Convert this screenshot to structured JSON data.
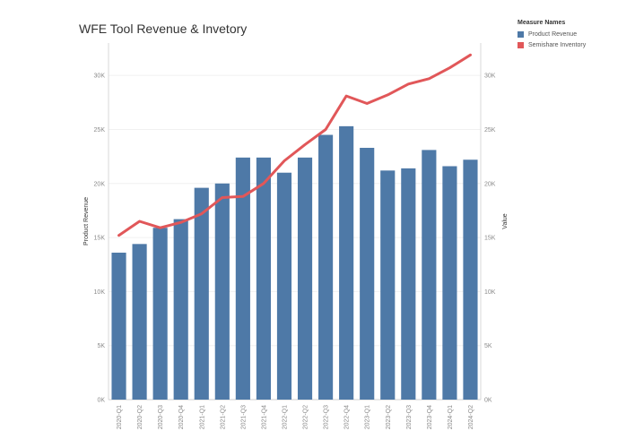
{
  "chart_data": {
    "type": "bar",
    "title": "WFE Tool Revenue & Invetory",
    "legend_title": "Measure Names",
    "categories": [
      "2020-Q1",
      "2020-Q2",
      "2020-Q3",
      "2020-Q4",
      "2021-Q1",
      "2021-Q2",
      "2021-Q3",
      "2021-Q4",
      "2022-Q1",
      "2022-Q2",
      "2022-Q3",
      "2022-Q4",
      "2023-Q1",
      "2023-Q2",
      "2023-Q3",
      "2023-Q4",
      "2024-Q1",
      "2024-Q2"
    ],
    "series": [
      {
        "name": "Product Revenue",
        "type": "bar",
        "color": "#4e79a7",
        "values": [
          13600,
          14400,
          15900,
          16700,
          19600,
          20000,
          22400,
          22400,
          21000,
          22400,
          24500,
          25300,
          23300,
          21200,
          21400,
          23100,
          21600,
          22200
        ]
      },
      {
        "name": "Semishare Inventory",
        "type": "line",
        "color": "#e15759",
        "values": [
          15200,
          16500,
          15900,
          16400,
          17200,
          18700,
          18800,
          20000,
          22100,
          23600,
          25000,
          28100,
          27400,
          28200,
          29200,
          29700,
          30700,
          31900
        ]
      }
    ],
    "ylabel_left": "Product Revenue",
    "ylabel_right": "Value",
    "ylim": [
      0,
      33000
    ],
    "yticks": [
      0,
      5000,
      10000,
      15000,
      20000,
      25000,
      30000
    ],
    "ytick_labels": [
      "0K",
      "5K",
      "10K",
      "15K",
      "20K",
      "25K",
      "30K"
    ],
    "grid": true,
    "legend_position": "top-right"
  }
}
